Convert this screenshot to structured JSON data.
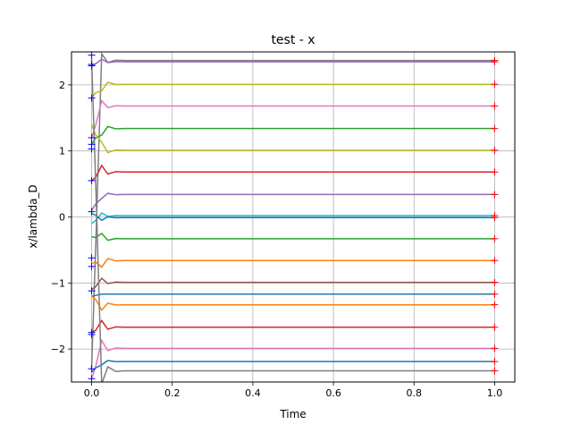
{
  "chart_data": {
    "type": "line",
    "title": "test - x",
    "xlabel": "Time",
    "ylabel": "x/lambda_D",
    "xlim": [
      -0.05,
      1.05
    ],
    "ylim": [
      -2.5,
      2.5
    ],
    "grid": true,
    "legend": "none",
    "x_ticks": [
      {
        "value": 0.0,
        "label": "0.0"
      },
      {
        "value": 0.2,
        "label": "0.2"
      },
      {
        "value": 0.4,
        "label": "0.4"
      },
      {
        "value": 0.6,
        "label": "0.6"
      },
      {
        "value": 0.8,
        "label": "0.8"
      },
      {
        "value": 1.0,
        "label": "1.0"
      }
    ],
    "y_ticks": [
      {
        "value": -2,
        "label": "−2"
      },
      {
        "value": -1,
        "label": "−1"
      },
      {
        "value": 0,
        "label": "0"
      },
      {
        "value": 1,
        "label": "1"
      },
      {
        "value": 2,
        "label": "2"
      }
    ],
    "settle_time": 0.08,
    "series": [
      {
        "color": "#7f7f7f",
        "start": -2.3,
        "overshoot": 0.1,
        "final": 2.37
      },
      {
        "color": "#9467bd",
        "start": 2.3,
        "overshoot": 0.04,
        "final": 2.35
      },
      {
        "color": "#bcbd22",
        "start": 1.8,
        "overshoot": -0.1,
        "final": 2.01
      },
      {
        "color": "#e377c2",
        "start": 1.2,
        "overshoot": 0.08,
        "final": 1.68
      },
      {
        "color": "#2ca02c",
        "start": 1.1,
        "overshoot": -0.1,
        "final": 1.34
      },
      {
        "color": "#bcbd22",
        "start": 1.4,
        "overshoot": 0.12,
        "final": 1.01
      },
      {
        "color": "#d62728",
        "start": 0.55,
        "overshoot": 0.1,
        "final": 0.68
      },
      {
        "color": "#9467bd",
        "start": 0.1,
        "overshoot": -0.06,
        "final": 0.34
      },
      {
        "color": "#17becf",
        "start": -0.1,
        "overshoot": 0.04,
        "final": 0.02
      },
      {
        "color": "#1f77b4",
        "start": 0.05,
        "overshoot": -0.04,
        "final": -0.01
      },
      {
        "color": "#2ca02c",
        "start": -0.3,
        "overshoot": 0.08,
        "final": -0.33
      },
      {
        "color": "#ff7f0e",
        "start": -0.7,
        "overshoot": -0.1,
        "final": -0.66
      },
      {
        "color": "#8c564b",
        "start": -1.1,
        "overshoot": 0.06,
        "final": -0.99
      },
      {
        "color": "#1f77b4",
        "start": -1.2,
        "overshoot": 0.0,
        "final": -1.17
      },
      {
        "color": "#ff7f0e",
        "start": -1.2,
        "overshoot": -0.08,
        "final": -1.33
      },
      {
        "color": "#d62728",
        "start": -1.75,
        "overshoot": 0.1,
        "final": -1.67
      },
      {
        "color": "#e377c2",
        "start": -2.45,
        "overshoot": 0.12,
        "final": -1.99
      },
      {
        "color": "#1f77b4",
        "start": -2.35,
        "overshoot": -0.05,
        "final": -2.19
      },
      {
        "color": "#7f7f7f",
        "start": 2.4,
        "overshoot": -0.2,
        "final": -2.33
      }
    ],
    "start_markers": {
      "symbol": "+",
      "color": "#0000ff",
      "x": 0.0,
      "y": [
        2.31,
        2.29,
        1.8,
        1.2,
        1.1,
        1.03,
        0.55,
        0.08,
        -0.62,
        -0.75,
        -1.12,
        -1.75,
        -1.78,
        -2.45,
        -2.3,
        2.45
      ]
    },
    "end_markers": {
      "symbol": "+",
      "color": "#ff0000",
      "x": 1.0
    }
  }
}
